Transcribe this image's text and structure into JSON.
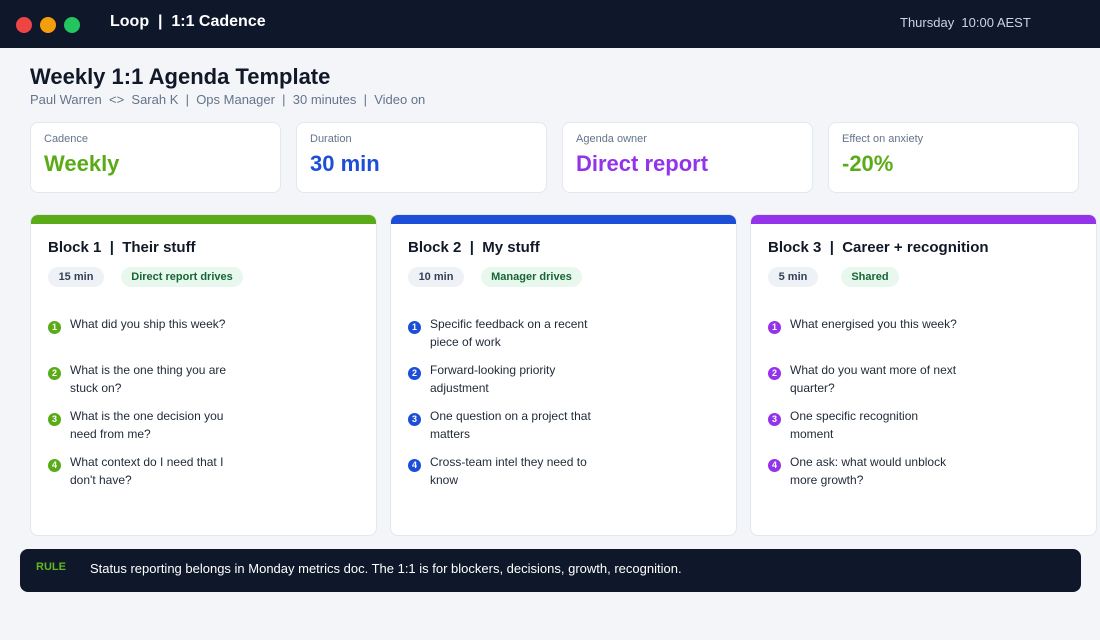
{
  "window": {
    "app_title": "Loop  |  1:1 Cadence",
    "clock": "Thursday  10:00 AEST"
  },
  "header": {
    "title": "Weekly 1:1 Agenda Template",
    "subtitle": "Paul Warren  <>  Sarah K  |  Ops Manager  |  30 minutes  |  Video on"
  },
  "stats": [
    {
      "label": "Cadence",
      "value": "Weekly",
      "color": "#5aab17"
    },
    {
      "label": "Duration",
      "value": "30 min",
      "color": "#1d4ed8"
    },
    {
      "label": "Agenda owner",
      "value": "Direct report",
      "color": "#9333ea"
    },
    {
      "label": "Effect on anxiety",
      "value": "-20%",
      "color": "#5aab17"
    }
  ],
  "blocks": [
    {
      "title": "Block 1  |  Their stuff",
      "time": "15 min",
      "owner": "Direct report drives",
      "accent": "#5aab17",
      "items": [
        {
          "num": "1",
          "text": "What did you ship this week?"
        },
        {
          "num": "2",
          "text": "What is the one thing you are stuck on?"
        },
        {
          "num": "3",
          "text": "What is the one decision you need from me?"
        },
        {
          "num": "4",
          "text": "What context do I need that I don't have?"
        }
      ]
    },
    {
      "title": "Block 2  |  My stuff",
      "time": "10 min",
      "owner": "Manager drives",
      "accent": "#1d4ed8",
      "items": [
        {
          "num": "1",
          "text": "Specific feedback on a recent piece of work"
        },
        {
          "num": "2",
          "text": "Forward-looking priority adjustment"
        },
        {
          "num": "3",
          "text": "One question on a project that matters"
        },
        {
          "num": "4",
          "text": "Cross-team intel they need to know"
        }
      ]
    },
    {
      "title": "Block 3  |  Career + recognition",
      "time": "5 min",
      "owner": "Shared",
      "accent": "#9333ea",
      "items": [
        {
          "num": "1",
          "text": "What energised you this week?"
        },
        {
          "num": "2",
          "text": "What do you want more of next quarter?"
        },
        {
          "num": "3",
          "text": "One specific recognition moment"
        },
        {
          "num": "4",
          "text": "One ask: what would unblock more growth?"
        }
      ]
    }
  ],
  "rule": {
    "label": "RULE",
    "text": "Status reporting belongs in Monday metrics doc. The 1:1 is for blockers, decisions, growth, recognition."
  },
  "colors": {
    "close": "#ef4444",
    "minimize": "#f59e0b",
    "maximize": "#22c55e"
  }
}
